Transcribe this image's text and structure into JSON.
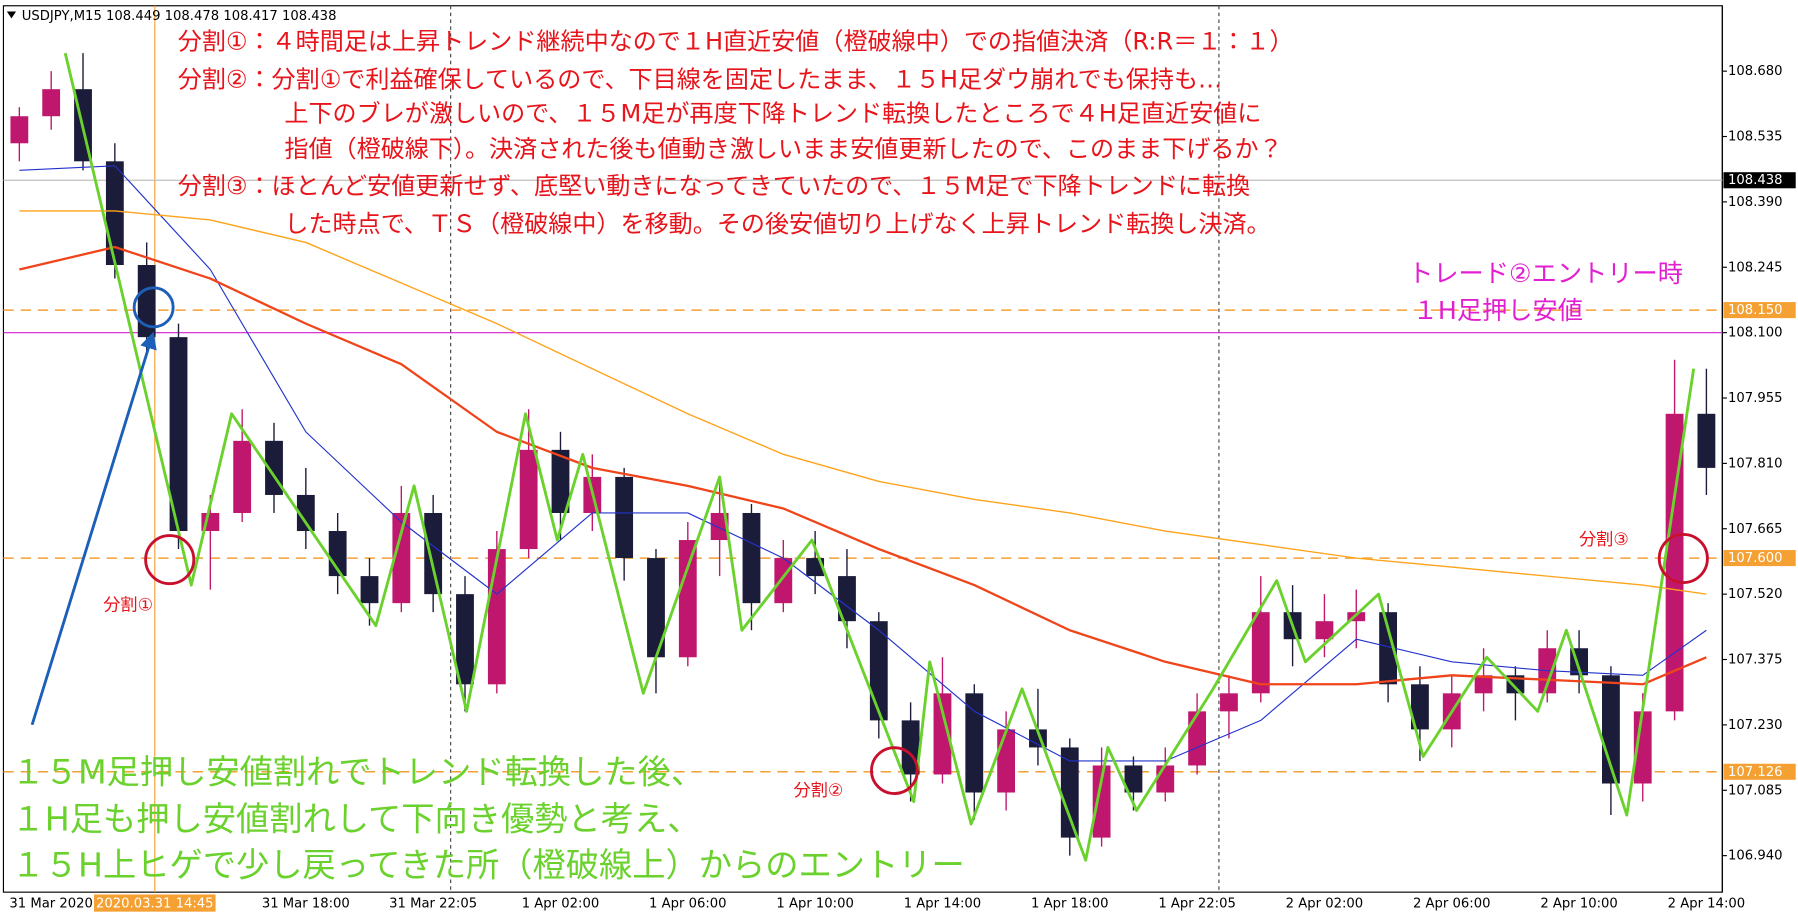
{
  "chart_data": {
    "type": "candlestick",
    "title": "USDJPY,M15  108.449 108.478 108.417 108.438",
    "categories": [
      null,
      "31 Mar 2020",
      null,
      null,
      null,
      null,
      null,
      null,
      null,
      "31 Mar 18:00",
      null,
      null,
      null,
      "31 Mar 22:05",
      null,
      null,
      null,
      "1 Apr 02:00",
      null,
      null,
      null,
      "1 Apr 06:00",
      null,
      null,
      null,
      "1 Apr 10:00",
      null,
      null,
      null,
      "1 Apr 14:00",
      null,
      null,
      null,
      "1 Apr 18:00",
      null,
      null,
      null,
      "1 Apr 22:05",
      null,
      null,
      null,
      "2 Apr 02:00",
      null,
      null,
      null,
      "2 Apr 06:00",
      null,
      null,
      null,
      "2 Apr 10:00",
      null,
      null,
      null,
      "2 Apr 14:00"
    ],
    "open": [
      108.52,
      108.58,
      108.64,
      108.48,
      108.25,
      108.09,
      107.66,
      107.7,
      107.86,
      107.74,
      107.66,
      107.56,
      107.5,
      107.7,
      107.52,
      107.32,
      107.62,
      107.84,
      107.7,
      107.78,
      107.6,
      107.38,
      107.64,
      107.7,
      107.5,
      107.6,
      107.56,
      107.46,
      107.24,
      107.12,
      107.3,
      107.08,
      107.22,
      107.18,
      106.98,
      107.14,
      107.08,
      107.14,
      107.26,
      107.3,
      107.48,
      107.42,
      107.46,
      107.48,
      107.32,
      107.22,
      107.3,
      107.34,
      107.3,
      107.4,
      107.34,
      107.1,
      107.26,
      107.92
    ],
    "high": [
      108.6,
      108.68,
      108.72,
      108.52,
      108.3,
      108.12,
      107.74,
      107.93,
      107.9,
      107.8,
      107.7,
      107.6,
      107.76,
      107.74,
      107.56,
      107.66,
      107.93,
      107.88,
      107.83,
      107.8,
      107.62,
      107.68,
      107.78,
      107.72,
      107.64,
      107.66,
      107.62,
      107.48,
      107.28,
      107.38,
      107.32,
      107.26,
      107.31,
      107.2,
      107.18,
      107.16,
      107.18,
      107.3,
      107.34,
      107.56,
      107.54,
      107.52,
      107.53,
      107.5,
      107.36,
      107.34,
      107.4,
      107.36,
      107.44,
      107.44,
      107.36,
      107.3,
      108.04,
      108.02
    ],
    "low": [
      108.48,
      108.55,
      108.46,
      108.22,
      108.05,
      107.62,
      107.53,
      107.68,
      107.7,
      107.62,
      107.52,
      107.45,
      107.48,
      107.48,
      107.26,
      107.3,
      107.6,
      107.64,
      107.66,
      107.55,
      107.3,
      107.36,
      107.56,
      107.44,
      107.48,
      107.52,
      107.4,
      107.2,
      107.06,
      107.1,
      107.02,
      107.04,
      107.14,
      106.94,
      106.96,
      107.04,
      107.06,
      107.12,
      107.2,
      107.28,
      107.36,
      107.38,
      107.4,
      107.28,
      107.15,
      107.18,
      107.26,
      107.24,
      107.28,
      107.3,
      107.03,
      107.06,
      107.24,
      107.74
    ],
    "close": [
      108.58,
      108.64,
      108.48,
      108.25,
      108.09,
      107.66,
      107.7,
      107.86,
      107.74,
      107.66,
      107.56,
      107.5,
      107.7,
      107.52,
      107.32,
      107.62,
      107.84,
      107.7,
      107.78,
      107.6,
      107.38,
      107.64,
      107.7,
      107.5,
      107.6,
      107.56,
      107.46,
      107.24,
      107.12,
      107.3,
      107.08,
      107.22,
      107.18,
      106.98,
      107.14,
      107.08,
      107.14,
      107.26,
      107.3,
      107.48,
      107.42,
      107.46,
      107.48,
      107.32,
      107.22,
      107.3,
      107.34,
      107.3,
      107.4,
      107.34,
      107.1,
      107.26,
      107.92,
      107.8
    ],
    "up_color": "#c0176e",
    "down_color": "#1b1b3a",
    "lines": [
      {
        "color": "#2233cc",
        "width": 1,
        "x": [
          0,
          3,
          6,
          9,
          12,
          15,
          18,
          21,
          24,
          27,
          30,
          33,
          36,
          39,
          42,
          45,
          48,
          51,
          53
        ],
        "values": [
          108.46,
          108.47,
          108.24,
          107.88,
          107.68,
          107.52,
          107.7,
          107.7,
          107.6,
          107.44,
          107.26,
          107.15,
          107.15,
          107.24,
          107.42,
          107.37,
          107.35,
          107.34,
          107.44
        ]
      },
      {
        "color": "#f0441a",
        "width": 2,
        "x": [
          0,
          3,
          6,
          9,
          12,
          15,
          18,
          21,
          24,
          27,
          30,
          33,
          36,
          39,
          42,
          45,
          48,
          51,
          53
        ],
        "values": [
          108.24,
          108.29,
          108.22,
          108.12,
          108.03,
          107.88,
          107.8,
          107.76,
          107.71,
          107.62,
          107.54,
          107.44,
          107.37,
          107.32,
          107.32,
          107.34,
          107.33,
          107.32,
          107.38
        ]
      },
      {
        "color": "#ffa31a",
        "width": 1.2,
        "x": [
          0,
          3,
          6,
          9,
          12,
          15,
          18,
          21,
          24,
          27,
          30,
          33,
          36,
          39,
          42,
          45,
          48,
          51,
          53
        ],
        "values": [
          108.37,
          108.37,
          108.35,
          108.3,
          108.21,
          108.12,
          108.02,
          107.92,
          107.83,
          107.77,
          107.73,
          107.7,
          107.66,
          107.63,
          107.6,
          107.58,
          107.56,
          107.54,
          107.52
        ]
      },
      {
        "color": "#6ad12d",
        "width": 2.5,
        "x": [
          1.44,
          5.4,
          6.67,
          11.2,
          12.4,
          14.05,
          15.9,
          16.9,
          17.7,
          19.6,
          22,
          22.7,
          24.9,
          28.1,
          28.6,
          29.9,
          31.5,
          33.5,
          34.2,
          35.1,
          37.5,
          39.5,
          40.4,
          42.7,
          44.1,
          46.1,
          47.7,
          48.6,
          50.5,
          52.6
        ],
        "values": [
          108.72,
          107.54,
          107.92,
          107.45,
          107.76,
          107.26,
          107.92,
          107.64,
          107.83,
          107.3,
          107.78,
          107.44,
          107.64,
          107.06,
          107.37,
          107.01,
          107.31,
          106.93,
          107.18,
          107.04,
          107.31,
          107.55,
          107.37,
          107.52,
          107.16,
          107.38,
          107.26,
          107.44,
          107.03,
          108.02
        ]
      }
    ],
    "levels": [
      {
        "value": 108.15,
        "label": "108.150",
        "color": "#f5a033"
      },
      {
        "value": 107.6,
        "label": "107.600",
        "color": "#f5a033"
      },
      {
        "value": 107.126,
        "label": "107.126",
        "color": "#f5a033"
      }
    ],
    "magenta_line": {
      "value": 108.1,
      "color": "#d21fd0"
    },
    "price_line": 108.438,
    "crosshair_label": "2020.03.31 14:45",
    "ylim": [
      106.859,
      108.825
    ],
    "yticks": [
      {
        "value": 108.68,
        "label": "108.680"
      },
      108.535,
      {
        "value": 108.39,
        "label": "108.390"
      },
      108.245,
      {
        "value": 108.1,
        "label": "108.100"
      },
      107.955,
      {
        "value": 107.81,
        "label": "107.810"
      },
      107.665,
      {
        "value": 107.52,
        "label": "107.520"
      },
      107.375,
      {
        "value": 107.23,
        "label": "107.230"
      },
      107.085,
      {
        "value": 106.94,
        "label": "106.940"
      }
    ],
    "grid": false,
    "annotations": {
      "plan": [
        "分割①：４時間足は上昇トレンド継続中なので１H直近安値（橙破線中）での指値決済（R:R＝１：１）",
        "分割②：分割①で利益確保しているので、下目線を固定したまま、１５H足ダウ崩れでも保持も…",
        "上下のブレが激しいので、１５M足が再度下降トレンド転換したところで４H足直近安値に",
        "指値（橙破線下）。決済された後も値動き激しいまま安値更新したので、このまま下げるか？",
        "分割③：ほとんど安値更新せず、底堅い動きになってきていたので、１５M足で下降トレンドに転換",
        "した時点で、ＴＳ（橙破線中）を移動。その後安値切り上げなく上昇トレンド転換し決済。"
      ],
      "entry_note": [
        "トレード②エントリー時",
        "１H足押し安値"
      ],
      "reason": [
        "１５M足押し安値割れでトレンド転換した後、",
        "１H足も押し安値割れして下向き優勢と考え、",
        "１５H上ヒゲで少し戻ってきた所（橙破線上）からのエントリー"
      ],
      "split1": "分割①",
      "split2": "分割②",
      "split3": "分割③"
    }
  }
}
